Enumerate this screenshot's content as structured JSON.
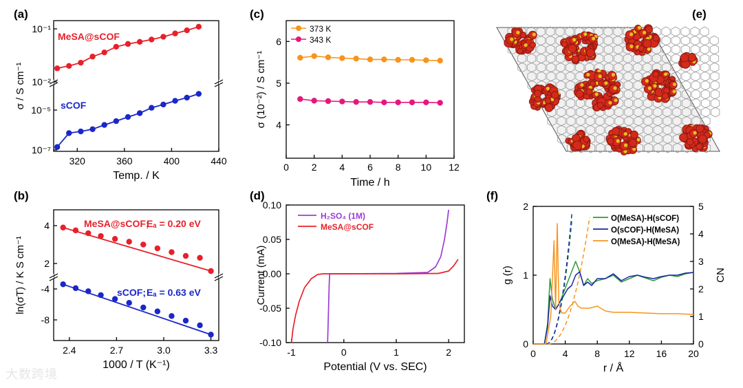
{
  "chart_data": [
    {
      "id": "a",
      "panel_label": "(a)",
      "type": "line",
      "xlabel": "Temp. / K",
      "ylabel": "σ / S cm⁻¹",
      "x_ticks": [
        "320",
        "360",
        "400",
        "440"
      ],
      "xlim": [
        300,
        440
      ],
      "y_scale": "log, broken axis",
      "y_ticks_top": [
        "10⁻¹",
        "10⁻²"
      ],
      "y_ticks_bottom": [
        "10⁻⁵",
        "10⁻⁷"
      ],
      "series": [
        {
          "name": "MeSA@sCOF",
          "color": "#e8202a",
          "x": [
            303,
            313,
            323,
            333,
            343,
            353,
            363,
            373,
            383,
            393,
            403,
            413,
            423
          ],
          "y": [
            0.018,
            0.02,
            0.023,
            0.03,
            0.036,
            0.046,
            0.052,
            0.057,
            0.063,
            0.071,
            0.082,
            0.094,
            0.11
          ]
        },
        {
          "name": "sCOF",
          "color": "#1a27c9",
          "x": [
            303,
            313,
            323,
            333,
            343,
            353,
            363,
            373,
            383,
            393,
            403,
            413,
            423
          ],
          "y": [
            1.4e-07,
            7e-07,
            8.5e-07,
            1.1e-06,
            1.8e-06,
            2.8e-06,
            4.5e-06,
            7e-06,
            1.3e-05,
            1.9e-05,
            2.9e-05,
            4.2e-05,
            6.5e-05
          ]
        }
      ]
    },
    {
      "id": "b",
      "panel_label": "(b)",
      "type": "scatter",
      "xlabel": "1000 / T (K⁻¹)",
      "ylabel": "ln(σT) / K S cm⁻¹",
      "x_ticks": [
        "2.4",
        "2.7",
        "3.0",
        "3.3"
      ],
      "xlim": [
        2.3,
        3.35
      ],
      "y_scale": "broken axis",
      "y_ticks_top": [
        "4",
        "2"
      ],
      "y_ticks_bottom": [
        "-4",
        "-8"
      ],
      "series": [
        {
          "name": "MeSA@sCOF",
          "label": "MeSA@sCOF;",
          "ea_label": "Eₐ = 0.20 eV",
          "color": "#e8202a",
          "x": [
            2.36,
            2.44,
            2.52,
            2.6,
            2.69,
            2.78,
            2.87,
            2.96,
            3.05,
            3.14,
            3.23,
            3.3
          ],
          "y": [
            3.9,
            3.75,
            3.6,
            3.45,
            3.3,
            3.15,
            3.0,
            2.8,
            2.6,
            2.4,
            2.3,
            1.6
          ]
        },
        {
          "name": "sCOF",
          "label": "sCOF;",
          "ea_label": "Eₐ = 0.63 eV",
          "color": "#1a27c9",
          "x": [
            2.36,
            2.44,
            2.52,
            2.6,
            2.69,
            2.78,
            2.87,
            2.96,
            3.05,
            3.14,
            3.23,
            3.3
          ],
          "y": [
            -3.4,
            -3.9,
            -4.3,
            -4.8,
            -5.3,
            -5.8,
            -6.4,
            -6.9,
            -7.5,
            -8.1,
            -8.7,
            -9.9
          ]
        }
      ]
    },
    {
      "id": "c",
      "panel_label": "(c)",
      "type": "line",
      "xlabel": "Time / h",
      "ylabel": "σ (10⁻²) / S cm⁻¹",
      "xlim": [
        0,
        12
      ],
      "ylim": [
        3.2,
        6.5
      ],
      "x_ticks": [
        "0",
        "2",
        "4",
        "6",
        "8",
        "10",
        "12"
      ],
      "y_ticks": [
        "4",
        "5",
        "6"
      ],
      "series": [
        {
          "name": "373 K",
          "color": "#f7941d",
          "x": [
            1,
            2,
            3,
            4,
            5,
            6,
            7,
            8,
            9,
            10,
            11
          ],
          "y": [
            5.61,
            5.65,
            5.62,
            5.6,
            5.59,
            5.57,
            5.57,
            5.56,
            5.56,
            5.55,
            5.54
          ]
        },
        {
          "name": "343 K",
          "color": "#e5177e",
          "x": [
            1,
            2,
            3,
            4,
            5,
            6,
            7,
            8,
            9,
            10,
            11
          ],
          "y": [
            4.62,
            4.58,
            4.57,
            4.56,
            4.55,
            4.55,
            4.54,
            4.54,
            4.54,
            4.54,
            4.53
          ]
        }
      ]
    },
    {
      "id": "d",
      "panel_label": "(d)",
      "type": "line",
      "xlabel": "Potential (V vs. SEC)",
      "ylabel": "Current (mA)",
      "xlim": [
        -1.1,
        2.3
      ],
      "ylim": [
        -0.1,
        0.1
      ],
      "x_ticks": [
        "-1",
        "0",
        "1",
        "2"
      ],
      "y_ticks": [
        "0.10",
        "0.05",
        "0.00",
        "-0.05",
        "-0.10"
      ],
      "series": [
        {
          "name": "H₂SO₄",
          "label_suffix": "(1M)",
          "color": "#9b3bd6",
          "x": [
            -0.31,
            -0.3,
            -0.29,
            -0.28,
            -0.27,
            0.0,
            1.0,
            1.6,
            1.75,
            1.85,
            1.92,
            1.97,
            2.0
          ],
          "y": [
            -0.1,
            -0.075,
            -0.045,
            -0.015,
            0.0,
            0.0,
            0.0005,
            0.002,
            0.01,
            0.025,
            0.05,
            0.075,
            0.093
          ]
        },
        {
          "name": "MeSA@sCOF",
          "color": "#e8202a",
          "x": [
            -1.0,
            -0.97,
            -0.92,
            -0.85,
            -0.75,
            -0.62,
            -0.5,
            -0.4,
            0.0,
            1.0,
            1.8,
            2.0,
            2.1,
            2.18
          ],
          "y": [
            -0.1,
            -0.08,
            -0.06,
            -0.04,
            -0.02,
            -0.007,
            -0.001,
            0.0,
            0.0,
            0.0,
            0.0005,
            0.004,
            0.012,
            0.021
          ]
        }
      ]
    },
    {
      "id": "f",
      "panel_label": "(f)",
      "type": "line",
      "xlabel": "r / Å",
      "ylabel": "g (r)",
      "y2label": "CN",
      "xlim": [
        0,
        20
      ],
      "ylim": [
        0,
        2
      ],
      "y2lim": [
        0,
        5
      ],
      "x_ticks": [
        "0",
        "4",
        "8",
        "12",
        "16",
        "20"
      ],
      "y_ticks": [
        "0",
        "1",
        "2"
      ],
      "y2_ticks": [
        "0",
        "1",
        "2",
        "3",
        "4",
        "5"
      ],
      "series": [
        {
          "name": "O(MeSA)-H(sCOF)",
          "color": "#2e9a3a",
          "x": [
            0,
            1.4,
            1.8,
            2.1,
            2.4,
            2.8,
            3.3,
            3.8,
            4.3,
            4.8,
            5.3,
            5.8,
            6.3,
            6.8,
            7.3,
            8,
            9,
            10,
            11,
            12,
            13,
            14,
            15,
            16,
            17,
            18,
            19,
            20
          ],
          "y": [
            0,
            0,
            0.3,
            0.95,
            0.65,
            0.5,
            0.6,
            0.75,
            0.9,
            1.05,
            1.2,
            1.05,
            0.85,
            0.95,
            0.88,
            0.92,
            0.95,
            1.0,
            0.9,
            0.95,
            1.0,
            0.96,
            0.92,
            0.97,
            1.0,
            0.98,
            1.02,
            1.04
          ]
        },
        {
          "name": "O(sCOF)-H(MeSA)",
          "color": "#1a27a0",
          "x": [
            0,
            1.4,
            1.8,
            2.1,
            2.4,
            2.8,
            3.3,
            3.8,
            4.3,
            4.8,
            5.3,
            5.8,
            6.3,
            6.8,
            7.3,
            8,
            9,
            10,
            11,
            12,
            13,
            14,
            15,
            16,
            17,
            18,
            19,
            20
          ],
          "y": [
            0,
            0,
            0.25,
            0.7,
            0.55,
            0.5,
            0.6,
            0.7,
            0.8,
            0.85,
            1.0,
            1.05,
            0.85,
            0.9,
            0.85,
            0.95,
            0.95,
            1.02,
            0.92,
            0.98,
            1.0,
            0.97,
            0.95,
            0.98,
            1.0,
            1.0,
            1.03,
            1.04
          ]
        },
        {
          "name": "O(MeSA)-H(MeSA)",
          "color": "#f7941d",
          "x": [
            0,
            1.6,
            2.2,
            2.6,
            2.8,
            3.0,
            3.2,
            3.4,
            3.6,
            4.0,
            4.6,
            5.2,
            5.6,
            6.0,
            7.0,
            8.0,
            9.0,
            10,
            12,
            14,
            16,
            18,
            20
          ],
          "y": [
            0,
            0,
            0.4,
            1.5,
            0.5,
            1.75,
            0.6,
            0.5,
            0.45,
            0.45,
            0.55,
            0.62,
            0.55,
            0.52,
            0.52,
            0.55,
            0.48,
            0.46,
            0.46,
            0.45,
            0.44,
            0.44,
            0.43
          ]
        }
      ]
    }
  ],
  "panel_e": {
    "panel_label": "(e)",
    "type": "molecular-snapshot",
    "colors": {
      "framework": "#9a9a9a",
      "oxygen": "#d42a1c",
      "sulfur": "#e8c21c"
    }
  },
  "watermark": "大数跨境"
}
